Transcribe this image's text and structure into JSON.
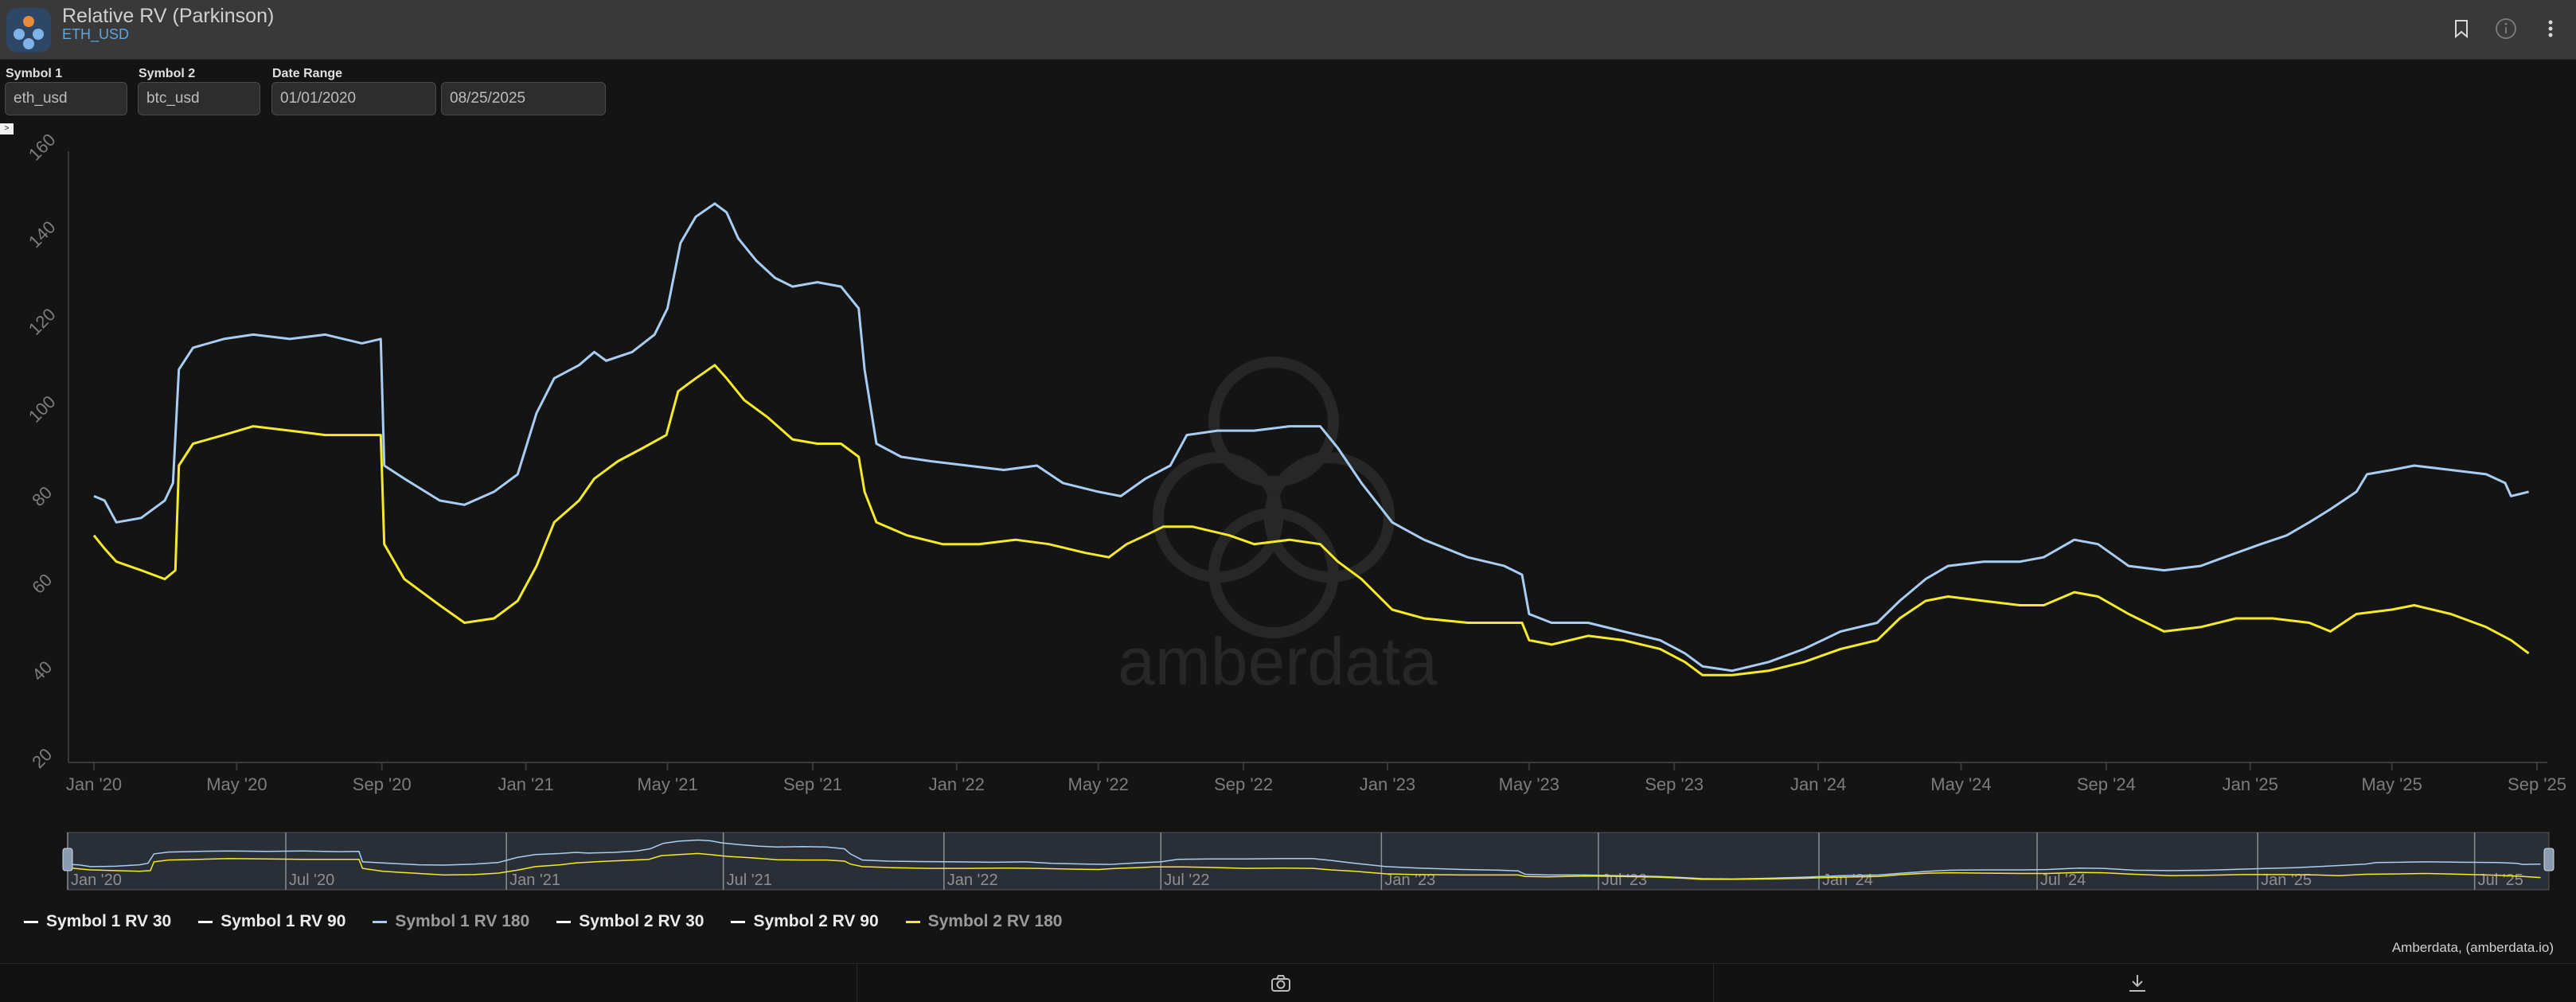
{
  "header": {
    "title": "Relative RV (Parkinson)",
    "subtitle": "ETH_USD"
  },
  "controls": {
    "symbol1_label": "Symbol 1",
    "symbol1_value": "eth_usd",
    "symbol2_label": "Symbol 2",
    "symbol2_value": "btc_usd",
    "date_range_label": "Date Range",
    "date_start": "01/01/2020",
    "date_end": "08/25/2025"
  },
  "legend": [
    {
      "label": "Symbol 1 RV 30",
      "color": "#ffffff",
      "dimmed": false
    },
    {
      "label": "Symbol 1 RV 90",
      "color": "#ffffff",
      "dimmed": false
    },
    {
      "label": "Symbol 1 RV 180",
      "color": "#a9cdf2",
      "dimmed": true
    },
    {
      "label": "Symbol 2 RV 30",
      "color": "#ffffff",
      "dimmed": false
    },
    {
      "label": "Symbol 2 RV 90",
      "color": "#ffffff",
      "dimmed": false
    },
    {
      "label": "Symbol 2 RV 180",
      "color": "#f4ea2a",
      "dimmed": true
    }
  ],
  "credit": "Amberdata, (amberdata.io)",
  "watermark": "amberdata",
  "icons": [
    "bookmark-icon",
    "info-icon",
    "more-vert-icon",
    "camera-icon",
    "download-icon"
  ],
  "chart_data": {
    "type": "line",
    "yticks": [
      20,
      40,
      60,
      80,
      100,
      120,
      140,
      160
    ],
    "ylim": [
      20,
      160
    ],
    "xlim": [
      "2020-01-01",
      "2025-09-01"
    ],
    "xticks": [
      {
        "date": "2020-01-01",
        "label": "Jan '20"
      },
      {
        "date": "2020-05-01",
        "label": "May '20"
      },
      {
        "date": "2020-09-01",
        "label": "Sep '20"
      },
      {
        "date": "2021-01-01",
        "label": "Jan '21"
      },
      {
        "date": "2021-05-01",
        "label": "May '21"
      },
      {
        "date": "2021-09-01",
        "label": "Sep '21"
      },
      {
        "date": "2022-01-01",
        "label": "Jan '22"
      },
      {
        "date": "2022-05-01",
        "label": "May '22"
      },
      {
        "date": "2022-09-01",
        "label": "Sep '22"
      },
      {
        "date": "2023-01-01",
        "label": "Jan '23"
      },
      {
        "date": "2023-05-01",
        "label": "May '23"
      },
      {
        "date": "2023-09-01",
        "label": "Sep '23"
      },
      {
        "date": "2024-01-01",
        "label": "Jan '24"
      },
      {
        "date": "2024-05-01",
        "label": "May '24"
      },
      {
        "date": "2024-09-01",
        "label": "Sep '24"
      },
      {
        "date": "2025-01-01",
        "label": "Jan '25"
      },
      {
        "date": "2025-05-01",
        "label": "May '25"
      },
      {
        "date": "2025-09-01",
        "label": "Sep '25"
      }
    ],
    "navigator_ticks": [
      {
        "date": "2020-01-01",
        "label": "Jan '20"
      },
      {
        "date": "2020-07-01",
        "label": "Jul '20"
      },
      {
        "date": "2021-01-01",
        "label": "Jan '21"
      },
      {
        "date": "2021-07-01",
        "label": "Jul '21"
      },
      {
        "date": "2022-01-01",
        "label": "Jan '22"
      },
      {
        "date": "2022-07-01",
        "label": "Jul '22"
      },
      {
        "date": "2023-01-01",
        "label": "Jan '23"
      },
      {
        "date": "2023-07-01",
        "label": "Jul '23"
      },
      {
        "date": "2024-01-01",
        "label": "Jan '24"
      },
      {
        "date": "2024-07-01",
        "label": "Jul '24"
      },
      {
        "date": "2025-01-01",
        "label": "Jan '25"
      },
      {
        "date": "2025-07-01",
        "label": "Jul '25"
      }
    ],
    "series": [
      {
        "name": "Symbol 1 RV 180",
        "color": "#a9cdf2",
        "points": [
          [
            "2020-01-01",
            81
          ],
          [
            "2020-01-10",
            80
          ],
          [
            "2020-01-20",
            75
          ],
          [
            "2020-02-10",
            76
          ],
          [
            "2020-03-01",
            80
          ],
          [
            "2020-03-08",
            84
          ],
          [
            "2020-03-13",
            110
          ],
          [
            "2020-03-25",
            115
          ],
          [
            "2020-04-20",
            117
          ],
          [
            "2020-05-15",
            118
          ],
          [
            "2020-06-15",
            117
          ],
          [
            "2020-07-15",
            118
          ],
          [
            "2020-08-15",
            116
          ],
          [
            "2020-08-31",
            117
          ],
          [
            "2020-09-03",
            88
          ],
          [
            "2020-09-20",
            85
          ],
          [
            "2020-10-20",
            80
          ],
          [
            "2020-11-10",
            79
          ],
          [
            "2020-12-05",
            82
          ],
          [
            "2020-12-25",
            86
          ],
          [
            "2021-01-10",
            100
          ],
          [
            "2021-01-25",
            108
          ],
          [
            "2021-02-15",
            111
          ],
          [
            "2021-02-28",
            114
          ],
          [
            "2021-03-10",
            112
          ],
          [
            "2021-04-01",
            114
          ],
          [
            "2021-04-20",
            118
          ],
          [
            "2021-05-01",
            124
          ],
          [
            "2021-05-12",
            139
          ],
          [
            "2021-05-25",
            145
          ],
          [
            "2021-06-10",
            148
          ],
          [
            "2021-06-20",
            146
          ],
          [
            "2021-06-30",
            140
          ],
          [
            "2021-07-15",
            135
          ],
          [
            "2021-07-31",
            131
          ],
          [
            "2021-08-15",
            129
          ],
          [
            "2021-09-05",
            130
          ],
          [
            "2021-09-25",
            129
          ],
          [
            "2021-10-10",
            124
          ],
          [
            "2021-10-15",
            110
          ],
          [
            "2021-10-25",
            93
          ],
          [
            "2021-11-15",
            90
          ],
          [
            "2021-12-10",
            89
          ],
          [
            "2022-01-10",
            88
          ],
          [
            "2022-02-10",
            87
          ],
          [
            "2022-03-10",
            88
          ],
          [
            "2022-04-01",
            84
          ],
          [
            "2022-05-01",
            82
          ],
          [
            "2022-05-20",
            81
          ],
          [
            "2022-06-10",
            85
          ],
          [
            "2022-07-01",
            88
          ],
          [
            "2022-07-15",
            95
          ],
          [
            "2022-08-10",
            96
          ],
          [
            "2022-09-10",
            96
          ],
          [
            "2022-10-10",
            97
          ],
          [
            "2022-11-05",
            97
          ],
          [
            "2022-11-20",
            92
          ],
          [
            "2022-12-10",
            84
          ],
          [
            "2023-01-05",
            75
          ],
          [
            "2023-02-01",
            71
          ],
          [
            "2023-03-10",
            67
          ],
          [
            "2023-04-10",
            65
          ],
          [
            "2023-04-25",
            63
          ],
          [
            "2023-05-01",
            54
          ],
          [
            "2023-05-20",
            52
          ],
          [
            "2023-06-20",
            52
          ],
          [
            "2023-07-20",
            50
          ],
          [
            "2023-08-20",
            48
          ],
          [
            "2023-09-10",
            45
          ],
          [
            "2023-09-25",
            42
          ],
          [
            "2023-10-20",
            41
          ],
          [
            "2023-11-20",
            43
          ],
          [
            "2023-12-20",
            46
          ],
          [
            "2024-01-20",
            50
          ],
          [
            "2024-02-20",
            52
          ],
          [
            "2024-03-10",
            57
          ],
          [
            "2024-04-01",
            62
          ],
          [
            "2024-04-20",
            65
          ],
          [
            "2024-05-20",
            66
          ],
          [
            "2024-06-20",
            66
          ],
          [
            "2024-07-10",
            67
          ],
          [
            "2024-08-05",
            71
          ],
          [
            "2024-08-25",
            70
          ],
          [
            "2024-09-20",
            65
          ],
          [
            "2024-10-20",
            64
          ],
          [
            "2024-11-20",
            65
          ],
          [
            "2024-12-10",
            67
          ],
          [
            "2025-01-10",
            70
          ],
          [
            "2025-02-01",
            72
          ],
          [
            "2025-02-20",
            75
          ],
          [
            "2025-03-10",
            78
          ],
          [
            "2025-04-01",
            82
          ],
          [
            "2025-04-10",
            86
          ],
          [
            "2025-05-01",
            87
          ],
          [
            "2025-05-20",
            88
          ],
          [
            "2025-06-20",
            87
          ],
          [
            "2025-07-20",
            86
          ],
          [
            "2025-08-05",
            84
          ],
          [
            "2025-08-10",
            81
          ],
          [
            "2025-08-25",
            82
          ]
        ]
      },
      {
        "name": "Symbol 2 RV 180",
        "color": "#f4ea2a",
        "points": [
          [
            "2020-01-01",
            72
          ],
          [
            "2020-01-10",
            69
          ],
          [
            "2020-01-20",
            66
          ],
          [
            "2020-02-10",
            64
          ],
          [
            "2020-03-01",
            62
          ],
          [
            "2020-03-10",
            64
          ],
          [
            "2020-03-13",
            88
          ],
          [
            "2020-03-25",
            93
          ],
          [
            "2020-04-20",
            95
          ],
          [
            "2020-05-15",
            97
          ],
          [
            "2020-06-15",
            96
          ],
          [
            "2020-07-15",
            95
          ],
          [
            "2020-08-15",
            95
          ],
          [
            "2020-08-31",
            95
          ],
          [
            "2020-09-03",
            70
          ],
          [
            "2020-09-20",
            62
          ],
          [
            "2020-10-20",
            56
          ],
          [
            "2020-11-10",
            52
          ],
          [
            "2020-12-05",
            53
          ],
          [
            "2020-12-25",
            57
          ],
          [
            "2021-01-10",
            65
          ],
          [
            "2021-01-25",
            75
          ],
          [
            "2021-02-15",
            80
          ],
          [
            "2021-02-28",
            85
          ],
          [
            "2021-03-20",
            89
          ],
          [
            "2021-04-10",
            92
          ],
          [
            "2021-04-30",
            95
          ],
          [
            "2021-05-10",
            105
          ],
          [
            "2021-05-25",
            108
          ],
          [
            "2021-06-10",
            111
          ],
          [
            "2021-06-20",
            108
          ],
          [
            "2021-07-05",
            103
          ],
          [
            "2021-07-25",
            99
          ],
          [
            "2021-08-15",
            94
          ],
          [
            "2021-09-05",
            93
          ],
          [
            "2021-09-25",
            93
          ],
          [
            "2021-10-10",
            90
          ],
          [
            "2021-10-15",
            82
          ],
          [
            "2021-10-25",
            75
          ],
          [
            "2021-11-20",
            72
          ],
          [
            "2021-12-20",
            70
          ],
          [
            "2022-01-20",
            70
          ],
          [
            "2022-02-20",
            71
          ],
          [
            "2022-03-20",
            70
          ],
          [
            "2022-04-20",
            68
          ],
          [
            "2022-05-10",
            67
          ],
          [
            "2022-05-25",
            70
          ],
          [
            "2022-06-10",
            72
          ],
          [
            "2022-06-25",
            74
          ],
          [
            "2022-07-20",
            74
          ],
          [
            "2022-08-20",
            72
          ],
          [
            "2022-09-10",
            70
          ],
          [
            "2022-10-10",
            71
          ],
          [
            "2022-11-05",
            70
          ],
          [
            "2022-11-20",
            66
          ],
          [
            "2022-12-10",
            62
          ],
          [
            "2023-01-05",
            55
          ],
          [
            "2023-02-01",
            53
          ],
          [
            "2023-03-10",
            52
          ],
          [
            "2023-04-10",
            52
          ],
          [
            "2023-04-25",
            52
          ],
          [
            "2023-05-01",
            48
          ],
          [
            "2023-05-20",
            47
          ],
          [
            "2023-06-20",
            49
          ],
          [
            "2023-07-20",
            48
          ],
          [
            "2023-08-20",
            46
          ],
          [
            "2023-09-10",
            43
          ],
          [
            "2023-09-25",
            40
          ],
          [
            "2023-10-20",
            40
          ],
          [
            "2023-11-20",
            41
          ],
          [
            "2023-12-20",
            43
          ],
          [
            "2024-01-20",
            46
          ],
          [
            "2024-02-20",
            48
          ],
          [
            "2024-03-10",
            53
          ],
          [
            "2024-04-01",
            57
          ],
          [
            "2024-04-20",
            58
          ],
          [
            "2024-05-20",
            57
          ],
          [
            "2024-06-20",
            56
          ],
          [
            "2024-07-10",
            56
          ],
          [
            "2024-08-05",
            59
          ],
          [
            "2024-08-25",
            58
          ],
          [
            "2024-09-20",
            54
          ],
          [
            "2024-10-20",
            50
          ],
          [
            "2024-11-20",
            51
          ],
          [
            "2024-12-20",
            53
          ],
          [
            "2025-01-20",
            53
          ],
          [
            "2025-02-20",
            52
          ],
          [
            "2025-03-10",
            50
          ],
          [
            "2025-04-01",
            54
          ],
          [
            "2025-05-01",
            55
          ],
          [
            "2025-05-20",
            56
          ],
          [
            "2025-06-20",
            54
          ],
          [
            "2025-07-20",
            51
          ],
          [
            "2025-08-10",
            48
          ],
          [
            "2025-08-25",
            45
          ]
        ]
      }
    ]
  }
}
